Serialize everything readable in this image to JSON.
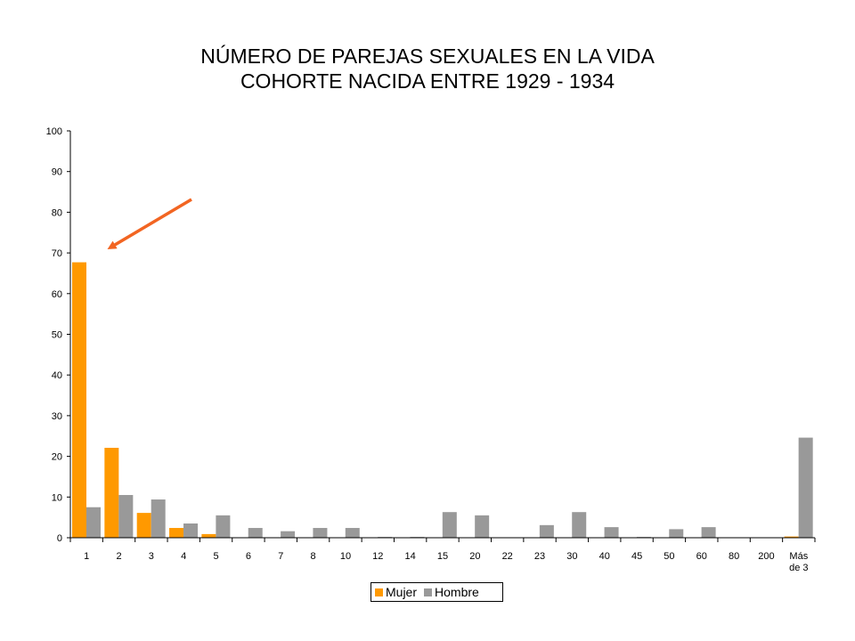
{
  "chart_data": {
    "type": "bar",
    "title_line1": "NÚMERO DE PAREJAS SEXUALES EN LA VIDA",
    "title_line2": "COHORTE NACIDA ENTRE 1929 - 1934",
    "xlabel": "",
    "ylabel": "",
    "ylim": [
      0,
      100
    ],
    "yticks": [
      0,
      10,
      20,
      30,
      40,
      50,
      60,
      70,
      80,
      90,
      100
    ],
    "categories": [
      "1",
      "2",
      "3",
      "4",
      "5",
      "6",
      "7",
      "8",
      "10",
      "12",
      "14",
      "15",
      "20",
      "22",
      "23",
      "30",
      "40",
      "45",
      "50",
      "60",
      "80",
      "200",
      "Más de 3"
    ],
    "series": [
      {
        "name": "Mujer",
        "color": "#FF9900",
        "values": [
          67.7,
          22.1,
          6.1,
          2.4,
          0.9,
          0,
          0,
          0,
          0,
          0,
          0,
          0,
          0,
          0,
          0,
          0,
          0,
          0,
          0,
          0,
          0,
          0,
          0.3
        ]
      },
      {
        "name": "Hombre",
        "color": "#999999",
        "values": [
          7.5,
          10.5,
          9.4,
          3.5,
          5.5,
          2.4,
          1.6,
          2.4,
          2.4,
          0.2,
          0.2,
          6.3,
          5.5,
          0,
          3.1,
          6.3,
          2.6,
          0.2,
          2.1,
          2.6,
          0,
          0,
          24.6
        ]
      }
    ],
    "grid": false,
    "legend": "bottom"
  },
  "annotation": {
    "type": "arrow",
    "color": "#F26522",
    "points_to_category": "1"
  }
}
